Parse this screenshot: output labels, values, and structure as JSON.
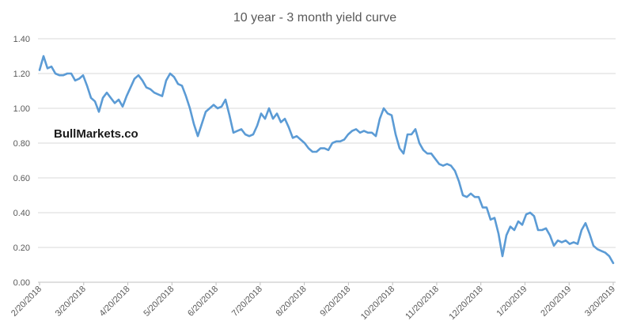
{
  "watermark": {
    "text": "BullMarkets.co"
  },
  "colors": {
    "line": "#5B9BD5",
    "gridline": "#D9D9D9",
    "axis": "#BFBFBF",
    "tick_label": "#595959",
    "title": "#595959",
    "watermark": "#1A1A1A",
    "background": "#FFFFFF"
  },
  "chart_data": {
    "type": "line",
    "title": "10 year - 3 month yield curve",
    "xlabel": "",
    "ylabel": "",
    "legend": "none",
    "grid": "horizontal",
    "ylim": [
      0.0,
      1.4
    ],
    "y_tick_labels": [
      "0.00",
      "0.20",
      "0.40",
      "0.60",
      "0.80",
      "1.00",
      "1.20",
      "1.40"
    ],
    "x_range": [
      "2/20/2018",
      "3/20/2019"
    ],
    "x_tick_labels": [
      "2/20/2018",
      "3/20/2018",
      "4/20/2018",
      "5/20/2018",
      "6/20/2018",
      "7/20/2018",
      "8/20/2018",
      "9/20/2018",
      "10/20/2018",
      "11/20/2018",
      "12/20/2018",
      "1/20/2019",
      "2/20/2019",
      "3/20/2019"
    ],
    "sampling": "uniformly spaced between x_range start and end",
    "values": [
      1.22,
      1.3,
      1.23,
      1.24,
      1.2,
      1.19,
      1.19,
      1.2,
      1.2,
      1.16,
      1.17,
      1.19,
      1.13,
      1.06,
      1.04,
      0.98,
      1.06,
      1.09,
      1.06,
      1.03,
      1.05,
      1.01,
      1.07,
      1.12,
      1.17,
      1.19,
      1.16,
      1.12,
      1.11,
      1.09,
      1.08,
      1.07,
      1.16,
      1.2,
      1.18,
      1.14,
      1.13,
      1.07,
      1.0,
      0.91,
      0.84,
      0.91,
      0.98,
      1.0,
      1.02,
      1.0,
      1.01,
      1.05,
      0.96,
      0.86,
      0.87,
      0.88,
      0.85,
      0.84,
      0.85,
      0.9,
      0.97,
      0.94,
      1.0,
      0.94,
      0.97,
      0.92,
      0.94,
      0.89,
      0.83,
      0.84,
      0.82,
      0.8,
      0.77,
      0.75,
      0.75,
      0.77,
      0.77,
      0.76,
      0.8,
      0.81,
      0.81,
      0.82,
      0.85,
      0.87,
      0.88,
      0.86,
      0.87,
      0.86,
      0.86,
      0.84,
      0.94,
      1.0,
      0.97,
      0.96,
      0.85,
      0.77,
      0.74,
      0.85,
      0.85,
      0.88,
      0.8,
      0.76,
      0.74,
      0.74,
      0.71,
      0.68,
      0.67,
      0.68,
      0.67,
      0.64,
      0.58,
      0.5,
      0.49,
      0.51,
      0.49,
      0.49,
      0.43,
      0.43,
      0.36,
      0.37,
      0.28,
      0.15,
      0.27,
      0.32,
      0.3,
      0.35,
      0.33,
      0.39,
      0.4,
      0.38,
      0.3,
      0.3,
      0.31,
      0.27,
      0.21,
      0.24,
      0.23,
      0.24,
      0.22,
      0.23,
      0.22,
      0.3,
      0.34,
      0.28,
      0.21,
      0.19,
      0.18,
      0.17,
      0.15,
      0.11
    ]
  }
}
